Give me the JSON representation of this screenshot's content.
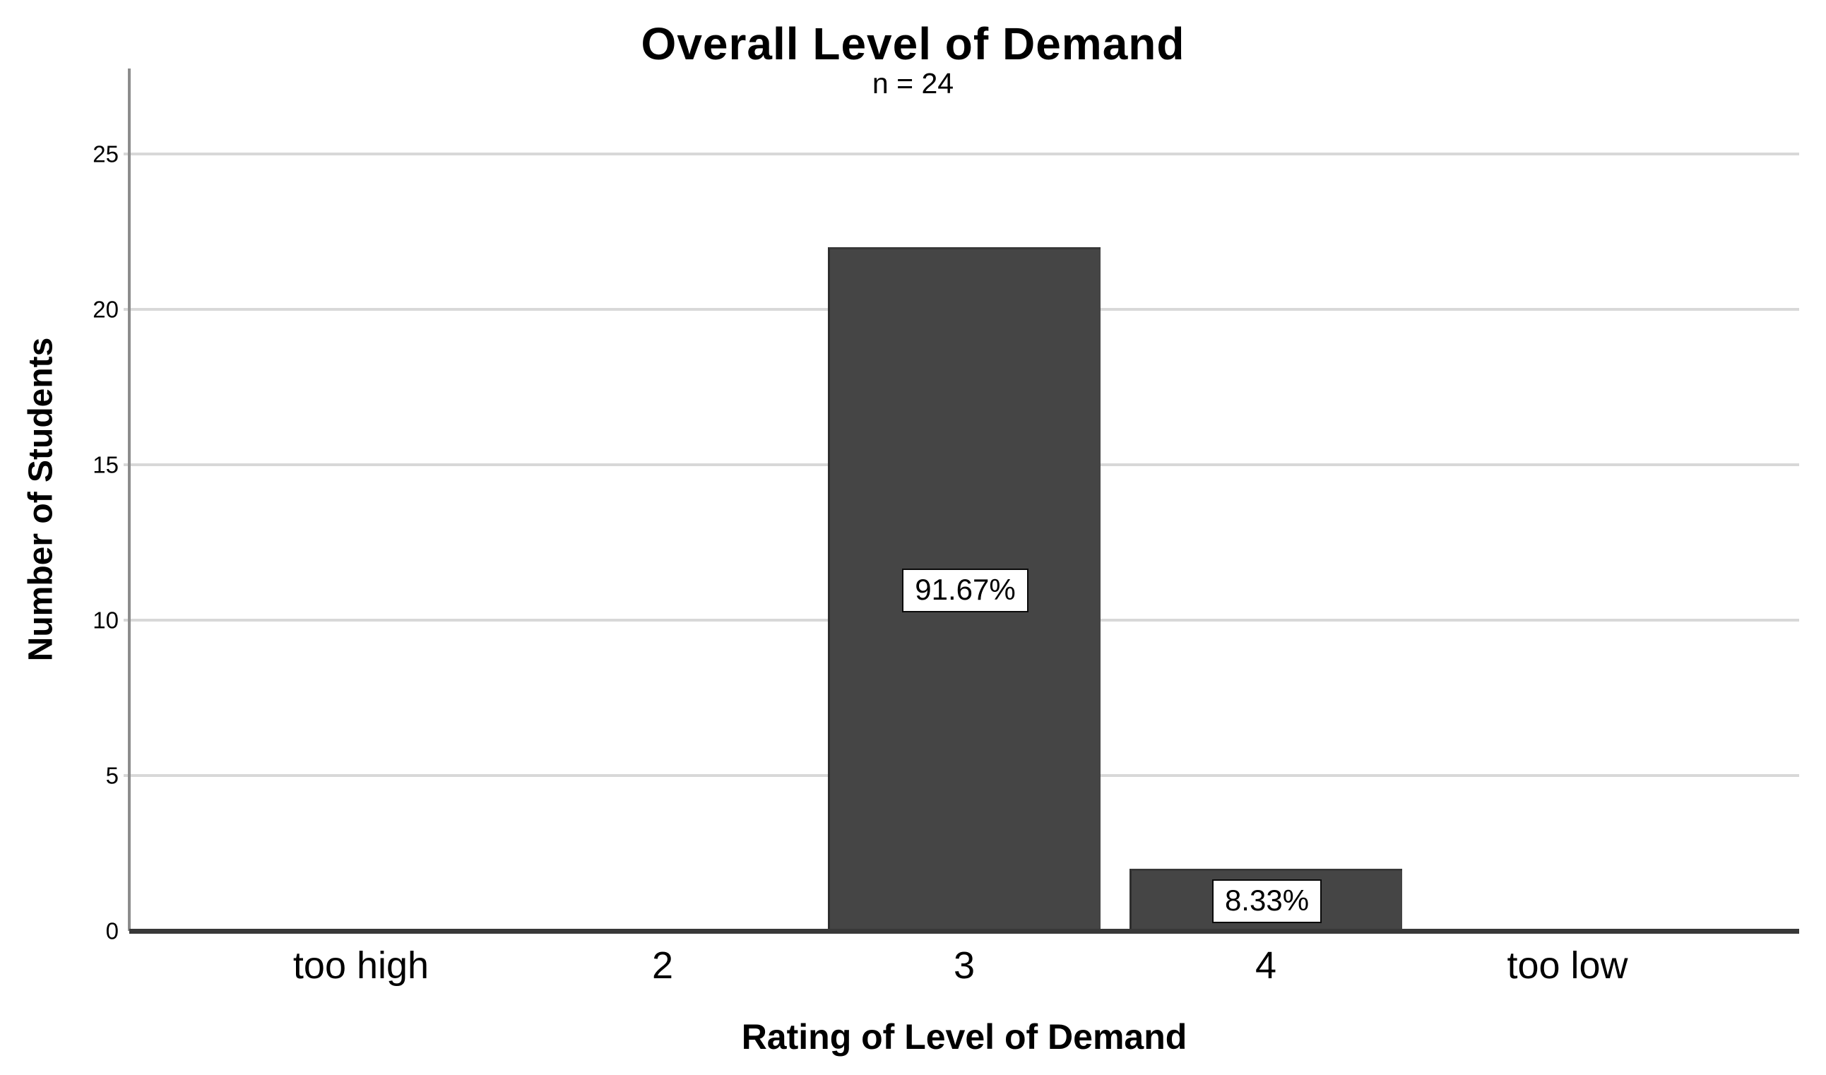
{
  "title": "Overall Level of Demand",
  "subtitle": "n = 24",
  "chart_data": {
    "type": "bar",
    "title": "Overall Level of Demand",
    "subtitle": "n = 24",
    "n": 24,
    "xlabel": "Rating of Level of Demand",
    "ylabel": "Number of Students",
    "categories": [
      "too high",
      "2",
      "3",
      "4",
      "too low"
    ],
    "values": [
      0,
      0,
      22,
      2,
      0
    ],
    "bar_labels": [
      "",
      "",
      "91.67%",
      "8.33%",
      ""
    ],
    "yticks": [
      0,
      5,
      10,
      15,
      20,
      25
    ],
    "ylim": [
      0,
      27.75
    ],
    "grid": "horizontal",
    "legend": "none",
    "colors": {
      "bar_fill": "#454545",
      "bar_edge": "#2e2e2e",
      "gridline": "#d8d8d8",
      "x_axis_line": "#383838",
      "y_axis_line": "#8c8c8c",
      "label_box_bg": "#ffffff",
      "label_box_border": "#0a0a0a",
      "text": "#000000",
      "background": "#ffffff"
    }
  }
}
